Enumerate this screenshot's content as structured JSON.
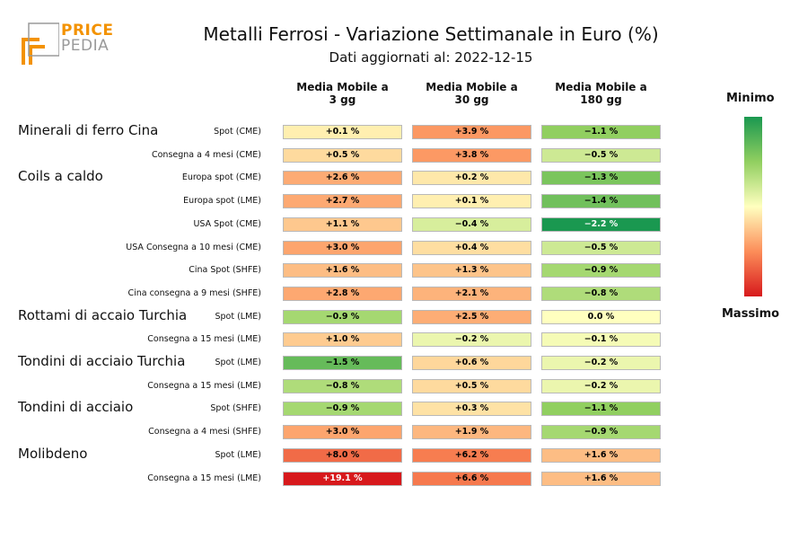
{
  "logo": {
    "line1": "PRICE",
    "line2": "PEDIA"
  },
  "title": "Metalli Ferrosi - Variazione Settimanale in Euro (%)",
  "subtitle": "Dati aggiornati al: 2022-12-15",
  "columns": [
    "Media Mobile a\n3 gg",
    "Media Mobile a\n30 gg",
    "Media Mobile a\n180 gg"
  ],
  "colorbar": {
    "min_label": "Minimo",
    "max_label": "Massimo"
  },
  "chart_data": {
    "type": "heatmap",
    "title": "Metalli Ferrosi - Variazione Settimanale in Euro (%)",
    "columns": [
      "Media Mobile a 3 gg",
      "Media Mobile a 30 gg",
      "Media Mobile a 180 gg"
    ],
    "colorscale": {
      "low": "#1a9850",
      "mid": "#ffffbf",
      "high": "#d7191c"
    },
    "groups": [
      {
        "name": "Minerali di ferro Cina",
        "start_row": 0
      },
      {
        "name": "Coils a caldo",
        "start_row": 2
      },
      {
        "name": "Rottami di accaio Turchia",
        "start_row": 8
      },
      {
        "name": "Tondini di acciaio Turchia",
        "start_row": 10
      },
      {
        "name": "Tondini di acciaio",
        "start_row": 12
      },
      {
        "name": "Molibdeno",
        "start_row": 14
      }
    ],
    "rows": [
      {
        "label": "Spot (CME)",
        "values": [
          0.1,
          3.9,
          -1.1
        ],
        "texts": [
          "+0.1 %",
          "+3.9 %",
          "−1.1 %"
        ]
      },
      {
        "label": "Consegna a 4 mesi (CME)",
        "values": [
          0.5,
          3.8,
          -0.5
        ],
        "texts": [
          "+0.5 %",
          "+3.8 %",
          "−0.5 %"
        ]
      },
      {
        "label": "Europa spot (CME)",
        "values": [
          2.6,
          0.2,
          -1.3
        ],
        "texts": [
          "+2.6 %",
          "+0.2 %",
          "−1.3 %"
        ]
      },
      {
        "label": "Europa spot (LME)",
        "values": [
          2.7,
          0.1,
          -1.4
        ],
        "texts": [
          "+2.7 %",
          "+0.1 %",
          "−1.4 %"
        ]
      },
      {
        "label": "USA Spot (CME)",
        "values": [
          1.1,
          -0.4,
          -2.2
        ],
        "texts": [
          "+1.1 %",
          "−0.4 %",
          "−2.2 %"
        ]
      },
      {
        "label": "USA Consegna a 10 mesi (CME)",
        "values": [
          3.0,
          0.4,
          -0.5
        ],
        "texts": [
          "+3.0 %",
          "+0.4 %",
          "−0.5 %"
        ]
      },
      {
        "label": "Cina Spot (SHFE)",
        "values": [
          1.6,
          1.3,
          -0.9
        ],
        "texts": [
          "+1.6 %",
          "+1.3 %",
          "−0.9 %"
        ]
      },
      {
        "label": "Cina consegna a 9 mesi (SHFE)",
        "values": [
          2.8,
          2.1,
          -0.8
        ],
        "texts": [
          "+2.8 %",
          "+2.1 %",
          "−0.8 %"
        ]
      },
      {
        "label": "Spot (LME)",
        "values": [
          -0.9,
          2.5,
          0.0
        ],
        "texts": [
          "−0.9 %",
          "+2.5 %",
          "0.0 %"
        ]
      },
      {
        "label": "Consegna a 15 mesi (LME)",
        "values": [
          1.0,
          -0.2,
          -0.1
        ],
        "texts": [
          "+1.0 %",
          "−0.2 %",
          "−0.1 %"
        ]
      },
      {
        "label": "Spot (LME)",
        "values": [
          -1.5,
          0.6,
          -0.2
        ],
        "texts": [
          "−1.5 %",
          "+0.6 %",
          "−0.2 %"
        ]
      },
      {
        "label": "Consegna a 15 mesi (LME)",
        "values": [
          -0.8,
          0.5,
          -0.2
        ],
        "texts": [
          "−0.8 %",
          "+0.5 %",
          "−0.2 %"
        ]
      },
      {
        "label": "Spot (SHFE)",
        "values": [
          -0.9,
          0.3,
          -1.1
        ],
        "texts": [
          "−0.9 %",
          "+0.3 %",
          "−1.1 %"
        ]
      },
      {
        "label": "Consegna a 4 mesi (SHFE)",
        "values": [
          3.0,
          1.9,
          -0.9
        ],
        "texts": [
          "+3.0 %",
          "+1.9 %",
          "−0.9 %"
        ]
      },
      {
        "label": "Spot (LME)",
        "values": [
          8.0,
          6.2,
          1.6
        ],
        "texts": [
          "+8.0 %",
          "+6.2 %",
          "+1.6 %"
        ]
      },
      {
        "label": "Consegna a 15 mesi (LME)",
        "values": [
          19.1,
          6.6,
          1.6
        ],
        "texts": [
          "+19.1 %",
          "+6.6 %",
          "+1.6 %"
        ]
      }
    ]
  }
}
